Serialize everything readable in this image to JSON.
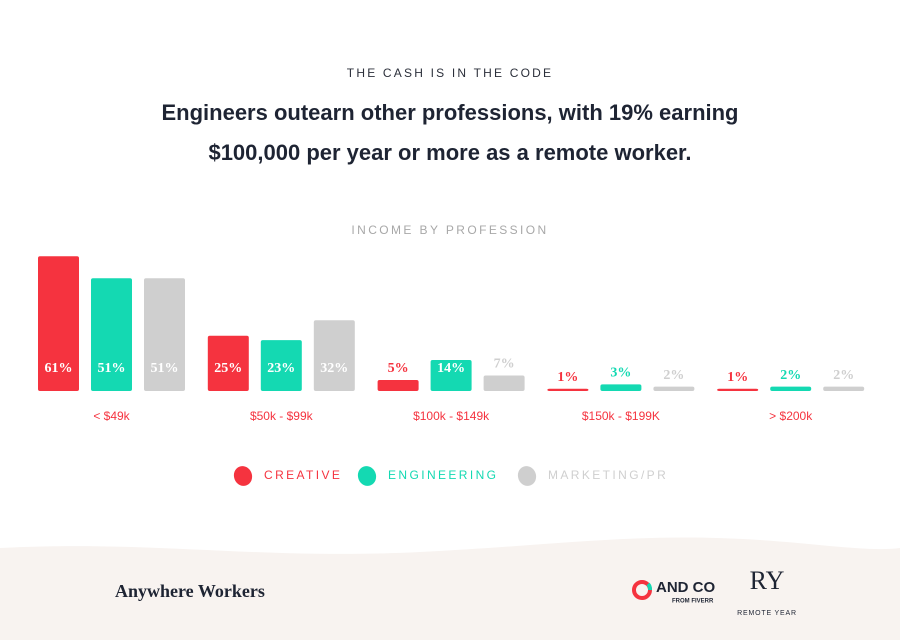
{
  "chart_data": {
    "type": "bar",
    "kicker": "THE CASH IS IN THE CODE",
    "title": [
      "Engineers outearn other professions, with 19% earning",
      "$100,000 per year or more as a remote worker."
    ],
    "subtitle": "INCOME BY PROFESSION",
    "categories": [
      "< $49k",
      "$50k - $99k",
      "$100k - $149k",
      "$150k - $199K",
      "> $200k"
    ],
    "series": [
      {
        "name": "CREATIVE",
        "color": "#f5333f",
        "values": [
          61,
          25,
          5,
          1,
          1
        ],
        "value_labels": [
          "61%",
          "25%",
          "5%",
          "1%",
          "1%"
        ]
      },
      {
        "name": "ENGINEERING",
        "color": "#14d9b2",
        "values": [
          51,
          23,
          14,
          3,
          2
        ],
        "value_labels": [
          "51%",
          "23%",
          "14%",
          "3%",
          "2%"
        ]
      },
      {
        "name": "MARKETING/PR",
        "color": "#cfcfcf",
        "values": [
          51,
          32,
          7,
          2,
          2
        ],
        "value_labels": [
          "51%",
          "32%",
          "7%",
          "2%",
          "2%"
        ]
      }
    ]
  },
  "footer": {
    "brand": "Anywhere Workers",
    "logo1": "AND CO",
    "logo1_sub": "FROM FIVERR",
    "logo2": "RY",
    "logo2_sub": "REMOTE YEAR"
  }
}
